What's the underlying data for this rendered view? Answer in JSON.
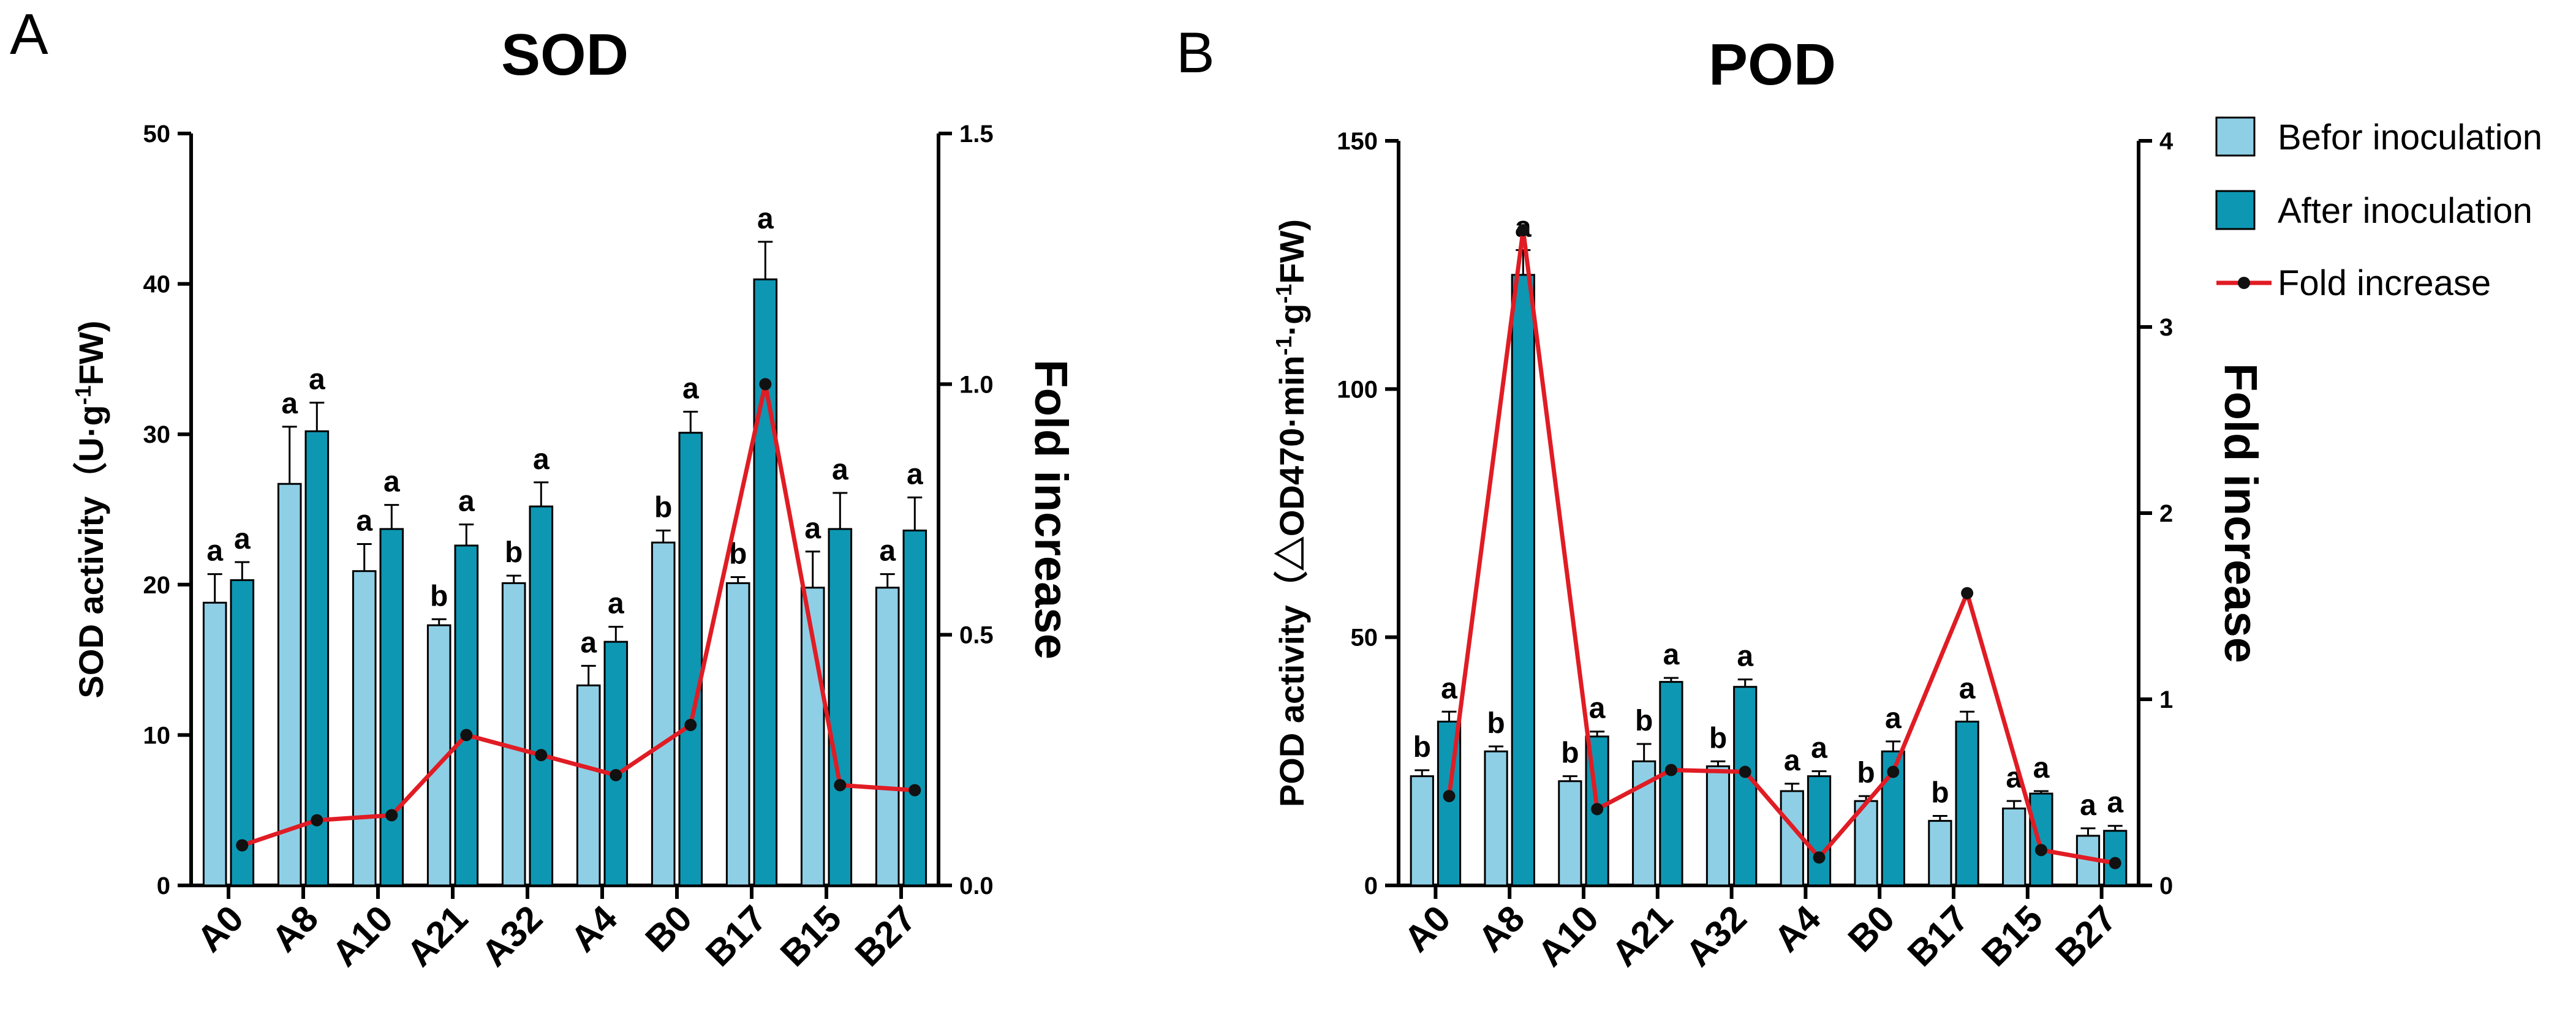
{
  "colors": {
    "before": "#8ecfe6",
    "after": "#0e97b3",
    "fold": "#e01c24",
    "dot": "#111111",
    "axis": "#000000"
  },
  "legend": [
    {
      "key": "before",
      "label": "Befor inoculation"
    },
    {
      "key": "after",
      "label": "After inoculation"
    },
    {
      "key": "fold",
      "label": "Fold increase"
    }
  ],
  "chart_data": [
    {
      "panel": "A",
      "type": "bar",
      "title": "SOD",
      "ylabel": "SOD activity（U·g⁻¹FW)",
      "y2label": "Fold increase",
      "ylim": [
        0,
        50
      ],
      "yticks": [
        0,
        10,
        20,
        30,
        40,
        50
      ],
      "y2lim": [
        0,
        1.5
      ],
      "y2ticks": [
        "0.0",
        "0.5",
        "1.0",
        "1.5"
      ],
      "categories": [
        "A0",
        "A8",
        "A10",
        "A21",
        "A32",
        "A4",
        "B0",
        "B17",
        "B15",
        "B27"
      ],
      "series": [
        {
          "name": "Befor inoculation",
          "values": [
            18.8,
            26.7,
            20.9,
            17.3,
            20.1,
            13.3,
            22.8,
            20.1,
            19.8,
            19.8
          ],
          "errors": [
            1.9,
            3.8,
            1.8,
            0.4,
            0.5,
            1.3,
            0.8,
            0.4,
            2.4,
            0.9
          ],
          "letters": [
            "a",
            "a",
            "a",
            "b",
            "b",
            "a",
            "b",
            "b",
            "a",
            "a"
          ]
        },
        {
          "name": "After inoculation",
          "values": [
            20.3,
            30.2,
            23.7,
            22.6,
            25.2,
            16.2,
            30.1,
            40.3,
            23.7,
            23.6
          ],
          "errors": [
            1.2,
            1.9,
            1.6,
            1.4,
            1.6,
            1.0,
            1.4,
            2.5,
            2.4,
            2.2
          ],
          "letters": [
            "a",
            "a",
            "a",
            "a",
            "a",
            "a",
            "a",
            "a",
            "a",
            "a"
          ]
        },
        {
          "name": "Fold increase",
          "type": "line",
          "axis": "right",
          "values": [
            0.08,
            0.13,
            0.14,
            0.3,
            0.26,
            0.22,
            0.32,
            1.0,
            0.2,
            0.19
          ]
        }
      ]
    },
    {
      "panel": "B",
      "type": "bar",
      "title": "POD",
      "ylabel": "POD activity（△OD470·min⁻¹·g⁻¹FW)",
      "y2label": "Fold increase",
      "ylim": [
        0,
        150
      ],
      "yticks": [
        0,
        50,
        100,
        150
      ],
      "y2lim": [
        0,
        4
      ],
      "y2ticks": [
        "0",
        "1",
        "2",
        "3",
        "4"
      ],
      "categories": [
        "A0",
        "A8",
        "A10",
        "A21",
        "A32",
        "A4",
        "B0",
        "B17",
        "B15",
        "B27"
      ],
      "series": [
        {
          "name": "Befor inoculation",
          "values": [
            22,
            27,
            21,
            25,
            24,
            19,
            17,
            13,
            15.5,
            10
          ],
          "errors": [
            1.2,
            1.0,
            1.0,
            3.5,
            1.0,
            1.5,
            1.0,
            1.0,
            1.5,
            1.5
          ],
          "letters": [
            "b",
            "b",
            "b",
            "b",
            "b",
            "a",
            "b",
            "b",
            "a",
            "a"
          ]
        },
        {
          "name": "After inoculation",
          "values": [
            33,
            123,
            30,
            41,
            40,
            22,
            27,
            33,
            18.5,
            11
          ],
          "errors": [
            2.0,
            5.0,
            1.0,
            0.8,
            1.5,
            1.0,
            2.0,
            2.0,
            0.5,
            1.0
          ],
          "letters": [
            "a",
            "a",
            "a",
            "a",
            "a",
            "a",
            "a",
            "a",
            "a",
            "a"
          ]
        },
        {
          "name": "Fold increase",
          "type": "line",
          "axis": "right",
          "values": [
            0.48,
            3.52,
            0.41,
            0.62,
            0.61,
            0.15,
            0.61,
            1.57,
            0.19,
            0.12
          ]
        }
      ]
    }
  ]
}
